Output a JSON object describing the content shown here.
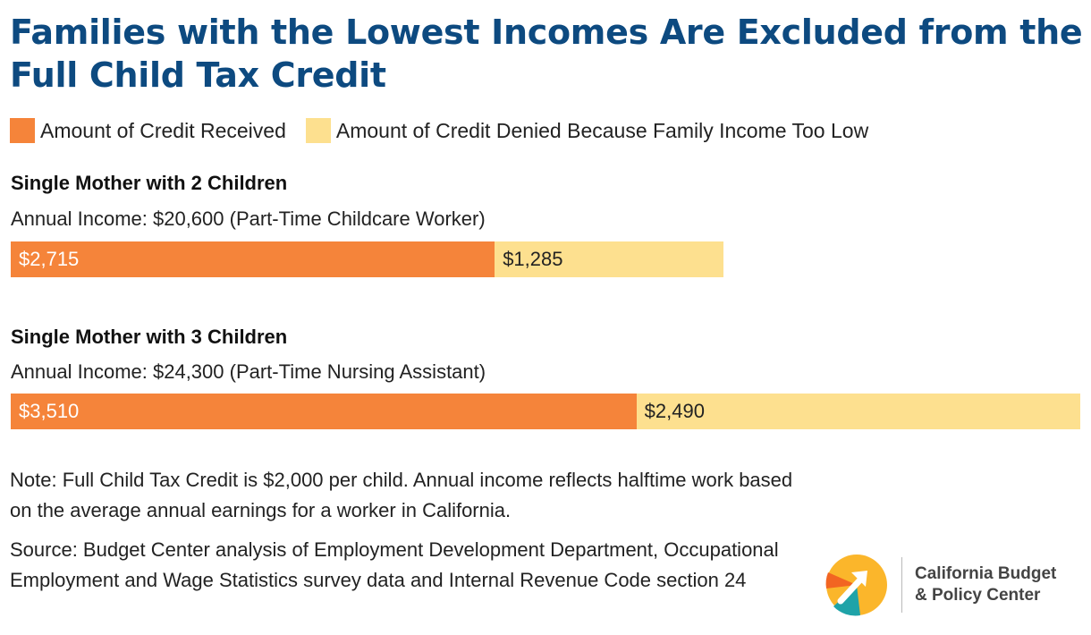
{
  "title": "Families with the Lowest Incomes Are Excluded from the Full Child Tax Credit",
  "legend": [
    {
      "label": "Amount of Credit Received",
      "color": "#f5843a"
    },
    {
      "label": "Amount of Credit Denied Because Family Income Too Low",
      "color": "#fde08f"
    }
  ],
  "chart_data": {
    "type": "bar",
    "orientation": "horizontal-stacked",
    "categories": [
      "Single Mother with 2 Children",
      "Single Mother with 3 Children"
    ],
    "subtitles": [
      "Annual Income: $20,600 (Part-Time Childcare Worker)",
      "Annual Income: $24,300 (Part-Time Nursing Assistant)"
    ],
    "series": [
      {
        "name": "Amount of Credit Received",
        "values": [
          2715,
          3510
        ],
        "labels": [
          "$2,715",
          "$3,510"
        ],
        "color": "#f5843a",
        "text_color": "#ffffff"
      },
      {
        "name": "Amount of Credit Denied Because Family Income Too Low",
        "values": [
          1285,
          2490
        ],
        "labels": [
          "$1,285",
          "$2,490"
        ],
        "color": "#fde08f",
        "text_color": "#222222"
      }
    ],
    "xlim": [
      0,
      6000
    ]
  },
  "note": "Note: Full Child Tax Credit is $2,000 per child. Annual income reflects halftime work based on the average annual earnings for a worker in California.",
  "source": "Source: Budget Center analysis of Employment Development Department, Occupational Employment and Wage Statistics survey data and Internal Revenue Code section 24",
  "logo": {
    "line1": "California Budget",
    "line2": "& Policy Center"
  }
}
